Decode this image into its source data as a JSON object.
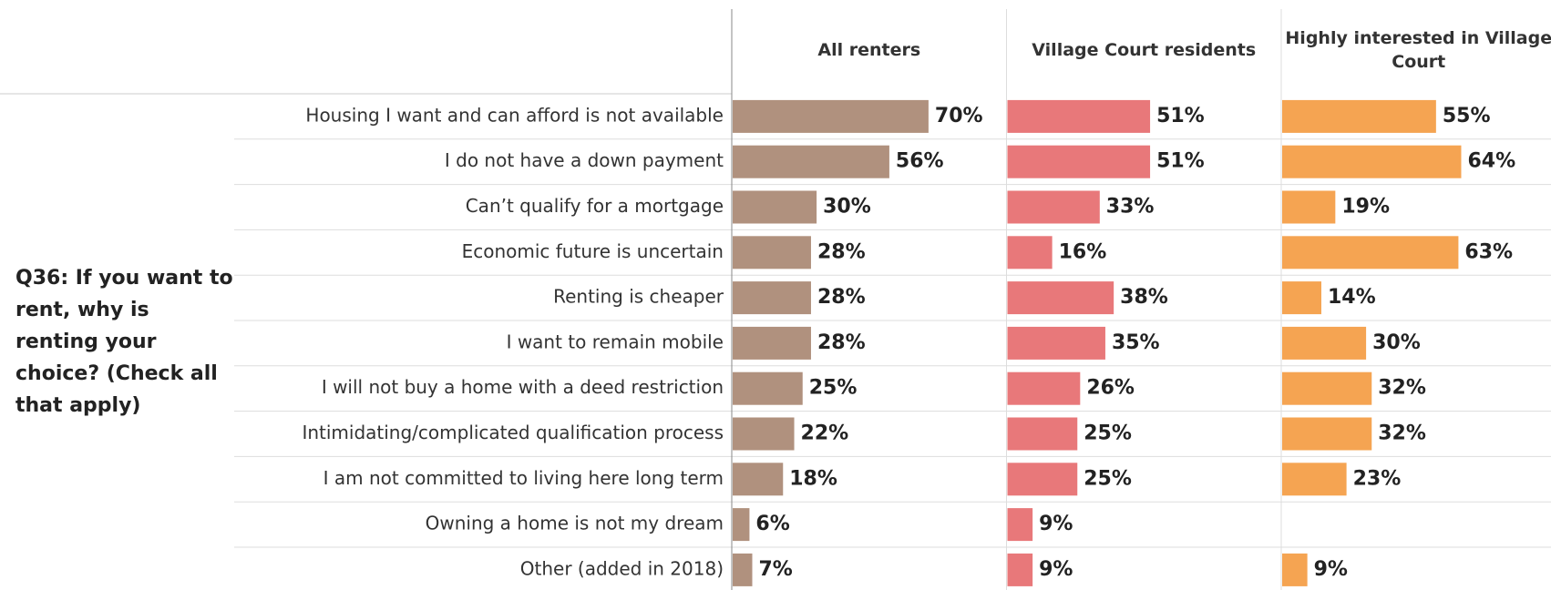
{
  "chart_data": {
    "type": "bar",
    "orientation": "horizontal",
    "title": "Q36: If you want to rent, why is renting your choice? (Check all that apply)",
    "categories": [
      "Housing I want and can afford is not available",
      "I do not have a down payment",
      "Can’t qualify for a mortgage",
      "Economic future is uncertain",
      "Renting is cheaper",
      "I want to remain mobile",
      "I will not buy a home with a deed restriction",
      "Intimidating/complicated qualification process",
      "I am not committed to living here long term",
      "Owning a home is not my dream",
      "Other (added in 2018)"
    ],
    "series": [
      {
        "name": "All renters",
        "color": "#b0917e",
        "values": [
          70,
          56,
          30,
          28,
          28,
          28,
          25,
          22,
          18,
          6,
          7
        ],
        "value_labels": [
          "70%",
          "56%",
          "30%",
          "28%",
          "28%",
          "28%",
          "25%",
          "22%",
          "18%",
          "6%",
          "7%"
        ]
      },
      {
        "name": "Village Court residents",
        "color": "#e8787a",
        "values": [
          51,
          51,
          33,
          16,
          38,
          35,
          26,
          25,
          25,
          9,
          9
        ],
        "value_labels": [
          "51%",
          "51%",
          "33%",
          "16%",
          "38%",
          "35%",
          "26%",
          "25%",
          "25%",
          "9%",
          "9%"
        ]
      },
      {
        "name": "Highly interested in Village Court",
        "color": "#f5a452",
        "values": [
          55,
          64,
          19,
          63,
          14,
          30,
          32,
          32,
          23,
          null,
          9
        ],
        "value_labels": [
          "55%",
          "64%",
          "19%",
          "63%",
          "14%",
          "30%",
          "32%",
          "32%",
          "23%",
          null,
          "9%"
        ]
      }
    ]
  }
}
